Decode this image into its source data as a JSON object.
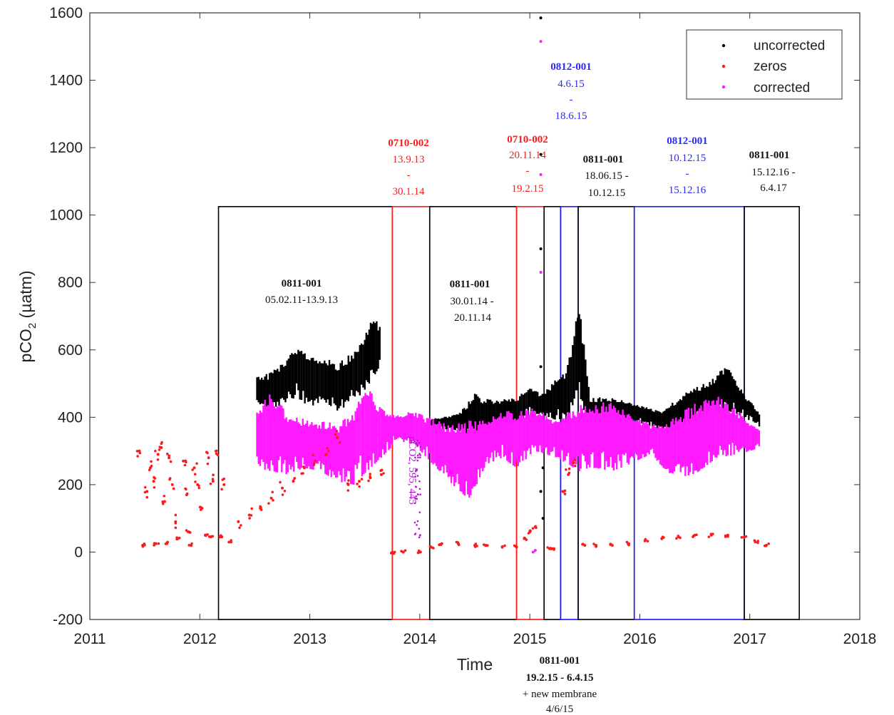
{
  "chart_data": {
    "type": "scatter",
    "xlabel": "Time",
    "ylabel": "pCO2 (µatm)",
    "xlim": [
      2011,
      2018
    ],
    "ylim": [
      -200,
      1600
    ],
    "x_ticks": [
      "2011",
      "2012",
      "2013",
      "2014",
      "2015",
      "2016",
      "2017",
      "2018"
    ],
    "y_ticks": [
      "-200",
      "0",
      "200",
      "400",
      "600",
      "800",
      "1000",
      "1200",
      "1400",
      "1600"
    ],
    "grid": false,
    "legend_position": "top-right",
    "colors": {
      "uncorrected": "#000000",
      "zeros": "#ff1a1a",
      "corrected": "#ff1aff",
      "black_box": "#000000",
      "red_box": "#ff1a1a",
      "blue_box": "#1a1aff",
      "purple_text": "#b01ad0"
    },
    "series": [
      {
        "name": "uncorrected",
        "color": "#000000",
        "envelope": [
          {
            "x": 2012.52,
            "low": 450,
            "high": 520
          },
          {
            "x": 2012.62,
            "low": 410,
            "high": 530
          },
          {
            "x": 2012.75,
            "low": 440,
            "high": 560
          },
          {
            "x": 2012.88,
            "low": 460,
            "high": 610
          },
          {
            "x": 2013.0,
            "low": 430,
            "high": 590
          },
          {
            "x": 2013.12,
            "low": 450,
            "high": 580
          },
          {
            "x": 2013.25,
            "low": 420,
            "high": 560
          },
          {
            "x": 2013.38,
            "low": 440,
            "high": 590
          },
          {
            "x": 2013.5,
            "low": 480,
            "high": 640
          },
          {
            "x": 2013.58,
            "low": 520,
            "high": 710
          },
          {
            "x": 2013.65,
            "low": 560,
            "high": 660
          },
          {
            "x": 2014.1,
            "low": 370,
            "high": 395
          },
          {
            "x": 2014.35,
            "low": 360,
            "high": 410
          },
          {
            "x": 2014.5,
            "low": 330,
            "high": 470
          },
          {
            "x": 2014.7,
            "low": 360,
            "high": 450
          },
          {
            "x": 2014.88,
            "low": 380,
            "high": 460
          },
          {
            "x": 2015.0,
            "low": 410,
            "high": 490
          },
          {
            "x": 2015.1,
            "low": 410,
            "high": 470
          },
          {
            "x": 2015.33,
            "low": 380,
            "high": 540
          },
          {
            "x": 2015.45,
            "low": 450,
            "high": 740
          },
          {
            "x": 2015.55,
            "low": 360,
            "high": 460
          },
          {
            "x": 2015.75,
            "low": 380,
            "high": 460
          },
          {
            "x": 2015.95,
            "low": 390,
            "high": 440
          },
          {
            "x": 2016.2,
            "low": 360,
            "high": 420
          },
          {
            "x": 2016.45,
            "low": 380,
            "high": 480
          },
          {
            "x": 2016.65,
            "low": 400,
            "high": 510
          },
          {
            "x": 2016.8,
            "low": 420,
            "high": 560
          },
          {
            "x": 2016.95,
            "low": 400,
            "high": 470
          },
          {
            "x": 2017.1,
            "low": 370,
            "high": 410
          }
        ]
      },
      {
        "name": "zeros",
        "color": "#ff1a1a",
        "points": [
          [
            2011.45,
            300
          ],
          [
            2011.48,
            20
          ],
          [
            2011.52,
            180
          ],
          [
            2011.55,
            250
          ],
          [
            2011.58,
            210
          ],
          [
            2011.6,
            25
          ],
          [
            2011.62,
            290
          ],
          [
            2011.65,
            310
          ],
          [
            2011.68,
            150
          ],
          [
            2011.7,
            25
          ],
          [
            2011.72,
            280
          ],
          [
            2011.75,
            200
          ],
          [
            2011.78,
            90
          ],
          [
            2011.8,
            40
          ],
          [
            2011.85,
            270
          ],
          [
            2011.88,
            170
          ],
          [
            2011.9,
            60
          ],
          [
            2011.92,
            20
          ],
          [
            2011.95,
            250
          ],
          [
            2011.98,
            200
          ],
          [
            2012.02,
            130
          ],
          [
            2012.05,
            50
          ],
          [
            2012.08,
            280
          ],
          [
            2012.1,
            45
          ],
          [
            2012.12,
            210
          ],
          [
            2012.15,
            300
          ],
          [
            2012.2,
            45
          ],
          [
            2012.22,
            200
          ],
          [
            2012.28,
            30
          ],
          [
            2012.35,
            90
          ],
          [
            2012.45,
            110
          ],
          [
            2012.55,
            130
          ],
          [
            2012.65,
            160
          ],
          [
            2012.75,
            190
          ],
          [
            2012.85,
            210
          ],
          [
            2012.95,
            250
          ],
          [
            2013.05,
            270
          ],
          [
            2013.15,
            290
          ],
          [
            2013.25,
            340
          ],
          [
            2013.35,
            200
          ],
          [
            2013.45,
            210
          ],
          [
            2013.55,
            220
          ],
          [
            2013.65,
            230
          ],
          [
            2013.75,
            0
          ],
          [
            2013.85,
            0
          ],
          [
            2014.0,
            0
          ],
          [
            2014.1,
            15
          ],
          [
            2014.2,
            25
          ],
          [
            2014.35,
            25
          ],
          [
            2014.5,
            20
          ],
          [
            2014.6,
            20
          ],
          [
            2014.75,
            15
          ],
          [
            2014.88,
            15
          ],
          [
            2014.95,
            40
          ],
          [
            2015.0,
            60
          ],
          [
            2015.05,
            75
          ],
          [
            2015.18,
            10
          ],
          [
            2015.22,
            10
          ],
          [
            2015.3,
            180
          ],
          [
            2015.35,
            230
          ],
          [
            2015.4,
            265
          ],
          [
            2015.5,
            20
          ],
          [
            2015.6,
            20
          ],
          [
            2015.75,
            20
          ],
          [
            2015.9,
            25
          ],
          [
            2016.05,
            35
          ],
          [
            2016.2,
            40
          ],
          [
            2016.35,
            45
          ],
          [
            2016.5,
            50
          ],
          [
            2016.65,
            50
          ],
          [
            2016.8,
            50
          ],
          [
            2016.95,
            45
          ],
          [
            2017.05,
            30
          ],
          [
            2017.15,
            20
          ]
        ]
      },
      {
        "name": "corrected",
        "color": "#ff1aff",
        "envelope": [
          {
            "x": 2012.52,
            "low": 250,
            "high": 430
          },
          {
            "x": 2012.65,
            "low": 240,
            "high": 480
          },
          {
            "x": 2012.8,
            "low": 230,
            "high": 410
          },
          {
            "x": 2012.95,
            "low": 250,
            "high": 400
          },
          {
            "x": 2013.1,
            "low": 240,
            "high": 390
          },
          {
            "x": 2013.25,
            "low": 210,
            "high": 380
          },
          {
            "x": 2013.4,
            "low": 200,
            "high": 420
          },
          {
            "x": 2013.52,
            "low": 240,
            "high": 500
          },
          {
            "x": 2013.65,
            "low": 280,
            "high": 430
          },
          {
            "x": 2013.8,
            "low": 330,
            "high": 410
          },
          {
            "x": 2013.95,
            "low": 320,
            "high": 420
          },
          {
            "x": 2014.15,
            "low": 250,
            "high": 390
          },
          {
            "x": 2014.3,
            "low": 200,
            "high": 380
          },
          {
            "x": 2014.45,
            "low": 150,
            "high": 390
          },
          {
            "x": 2014.6,
            "low": 260,
            "high": 400
          },
          {
            "x": 2014.75,
            "low": 280,
            "high": 420
          },
          {
            "x": 2014.88,
            "low": 250,
            "high": 420
          },
          {
            "x": 2015.05,
            "low": 300,
            "high": 430
          },
          {
            "x": 2015.25,
            "low": 280,
            "high": 390
          },
          {
            "x": 2015.45,
            "low": 240,
            "high": 440
          },
          {
            "x": 2015.6,
            "low": 250,
            "high": 440
          },
          {
            "x": 2015.75,
            "low": 240,
            "high": 450
          },
          {
            "x": 2015.9,
            "low": 260,
            "high": 420
          },
          {
            "x": 2016.1,
            "low": 290,
            "high": 380
          },
          {
            "x": 2016.3,
            "low": 220,
            "high": 400
          },
          {
            "x": 2016.5,
            "low": 230,
            "high": 440
          },
          {
            "x": 2016.7,
            "low": 280,
            "high": 470
          },
          {
            "x": 2016.9,
            "low": 290,
            "high": 420
          },
          {
            "x": 2017.1,
            "low": 310,
            "high": 360
          }
        ],
        "extra_points": [
          [
            2015.1,
            1515
          ],
          [
            2015.1,
            1120
          ],
          [
            2015.1,
            830
          ],
          [
            2015.03,
            0
          ],
          [
            2015.05,
            5
          ]
        ]
      }
    ],
    "outliers_uncorrected": [
      [
        2015.1,
        1585
      ],
      [
        2015.1,
        1180
      ],
      [
        2015.1,
        900
      ],
      [
        2015.1,
        550
      ],
      [
        2015.12,
        250
      ],
      [
        2015.1,
        180
      ],
      [
        2015.12,
        100
      ]
    ],
    "deployments": [
      {
        "x0": 2012.17,
        "x1": 2013.75,
        "color": "black",
        "id": "0811-001",
        "dates": "05.02.11-13.9.13"
      },
      {
        "x0": 2013.75,
        "x1": 2014.09,
        "color": "red",
        "id": "0710-002",
        "dates": "13.9.13 - 30.1.14"
      },
      {
        "x0": 2014.09,
        "x1": 2014.88,
        "color": "black",
        "id": "0811-001",
        "dates": "30.01.14 - 20.11.14"
      },
      {
        "x0": 2014.88,
        "x1": 2015.13,
        "color": "red",
        "id": "0710-002",
        "dates": "20.11.14 - 19.2.15"
      },
      {
        "x0": 2015.13,
        "x1": 2015.28,
        "color": "black",
        "id": "0811-001",
        "dates": "19.2.15 - 6.4.15"
      },
      {
        "x0": 2015.28,
        "x1": 2015.44,
        "color": "blue",
        "id": "0812-001",
        "dates": "4.6.15 - 18.6.15"
      },
      {
        "x0": 2015.44,
        "x1": 2015.95,
        "color": "black",
        "id": "0811-001",
        "dates": "18.06.15 - 10.12.15"
      },
      {
        "x0": 2015.95,
        "x1": 2016.95,
        "color": "blue",
        "id": "0812-001",
        "dates": "10.12.15 - 15.12.16"
      },
      {
        "x0": 2016.95,
        "x1": 2017.45,
        "color": "black",
        "id": "0811-001",
        "dates": "15.12.16 - 6.4.17"
      }
    ],
    "deployment_top": 1025,
    "deployment_bottom": -200
  },
  "axes": {
    "xlabel": "Time",
    "ylabel_main": "pCO",
    "ylabel_sub": "2",
    "ylabel_unit": " (µatm)"
  },
  "legend": {
    "items": [
      {
        "label": "uncorrected",
        "color": "#000000"
      },
      {
        "label": "zeros",
        "color": "#ff1a1a"
      },
      {
        "label": "corrected",
        "color": "#ff1aff"
      }
    ]
  },
  "annotations": {
    "a1": {
      "id": "0811-001",
      "line1": "05.02.11-13.9.13"
    },
    "a2": {
      "id": "0710-002",
      "line1": "13.9.13",
      "line2": "-",
      "line3": "30.1.14"
    },
    "a3": {
      "id": "0811-001",
      "line1": "30.01.14 -",
      "line2": "20.11.14"
    },
    "a4": {
      "id": "0710-002",
      "line1": "20.11.14",
      "line2": "-",
      "line3": "19.2.15"
    },
    "a5": {
      "id": "0812-001",
      "line1": "4.6.15",
      "line2": "-",
      "line3": "18.6.15"
    },
    "a6": {
      "id": "0811-001",
      "line1": "18.06.15 -",
      "line2": "10.12.15"
    },
    "a7": {
      "id": "0812-001",
      "line1": "10.12.15",
      "line2": "-",
      "line3": "15.12.16"
    },
    "a8": {
      "id": "0811-001",
      "line1": "15.12.16 -",
      "line2": "6.4.17"
    },
    "a9": {
      "id": "0811-001",
      "line1": "19.2.15 - 6.4.15",
      "line2": "+ new membrane",
      "line3": "4/6/15"
    },
    "vertical_text": "pCO2, 595, 445"
  }
}
